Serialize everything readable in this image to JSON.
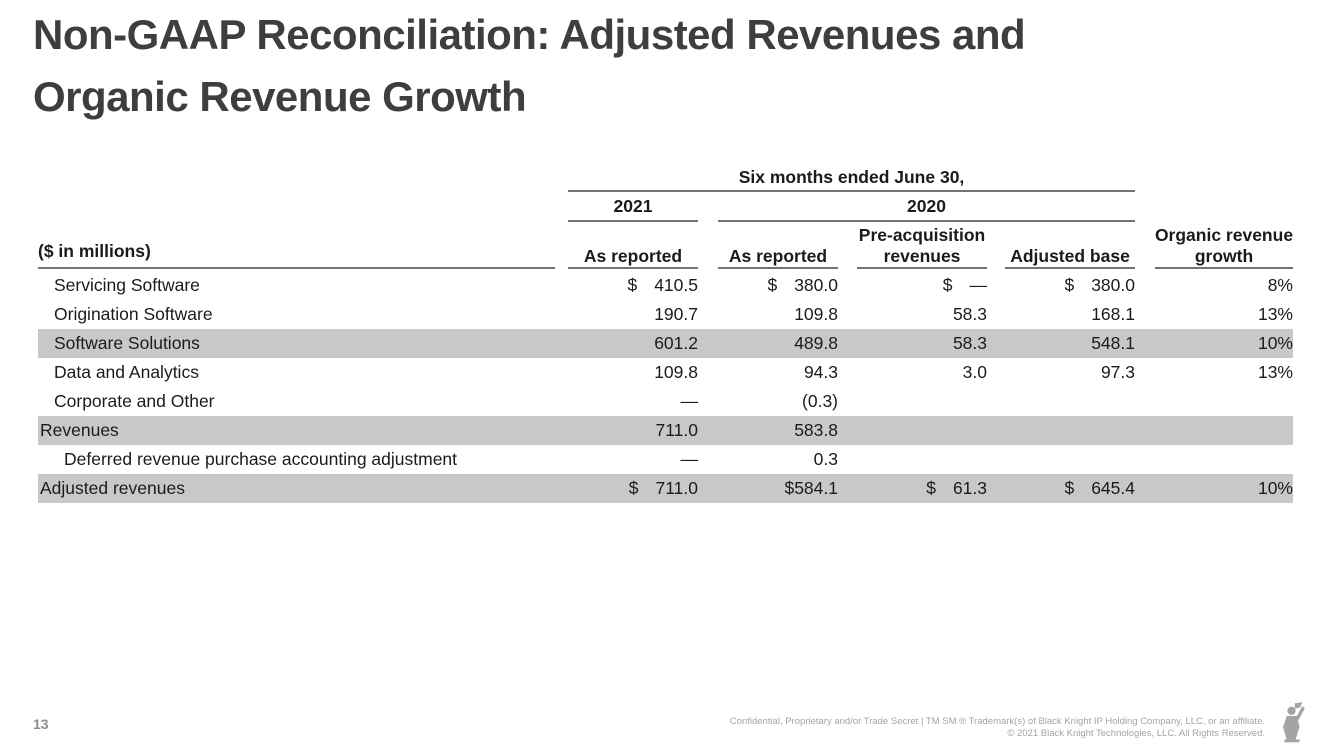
{
  "slide": {
    "title_line1": "Non-GAAP Reconciliation: Adjusted Revenues and",
    "title_line2": "Organic Revenue Growth",
    "page_number": "13"
  },
  "table": {
    "units_label": "($ in millions)",
    "period_label": "Six months ended June 30,",
    "year_2021": "2021",
    "year_2020": "2020",
    "columns": [
      "As reported",
      "As reported",
      "Pre-acquisition revenues",
      "Adjusted base",
      "Organic revenue growth"
    ],
    "rows": [
      {
        "label": "Servicing Software",
        "indent": 1,
        "shaded": false,
        "cells": [
          {
            "sym": "$",
            "val": "410.5"
          },
          {
            "sym": "$",
            "val": "380.0"
          },
          {
            "sym": "$",
            "val": "—"
          },
          {
            "sym": "$",
            "val": "380.0"
          },
          {
            "sym": "",
            "val": "8%"
          }
        ]
      },
      {
        "label": "Origination Software",
        "indent": 1,
        "shaded": false,
        "cells": [
          {
            "sym": "",
            "val": "190.7"
          },
          {
            "sym": "",
            "val": "109.8"
          },
          {
            "sym": "",
            "val": "58.3"
          },
          {
            "sym": "",
            "val": "168.1"
          },
          {
            "sym": "",
            "val": "13%"
          }
        ]
      },
      {
        "label": "Software Solutions",
        "indent": 1,
        "shaded": true,
        "cells": [
          {
            "sym": "",
            "val": "601.2"
          },
          {
            "sym": "",
            "val": "489.8"
          },
          {
            "sym": "",
            "val": "58.3"
          },
          {
            "sym": "",
            "val": "548.1"
          },
          {
            "sym": "",
            "val": "10%"
          }
        ]
      },
      {
        "label": "Data and Analytics",
        "indent": 1,
        "shaded": false,
        "cells": [
          {
            "sym": "",
            "val": "109.8"
          },
          {
            "sym": "",
            "val": "94.3"
          },
          {
            "sym": "",
            "val": "3.0"
          },
          {
            "sym": "",
            "val": "97.3"
          },
          {
            "sym": "",
            "val": "13%"
          }
        ]
      },
      {
        "label": "Corporate and Other",
        "indent": 1,
        "shaded": false,
        "cells": [
          {
            "sym": "",
            "val": "—"
          },
          {
            "sym": "",
            "val": "(0.3)"
          },
          {
            "sym": "",
            "val": ""
          },
          {
            "sym": "",
            "val": ""
          },
          {
            "sym": "",
            "val": ""
          }
        ]
      },
      {
        "label": "Revenues",
        "indent": 0,
        "shaded": true,
        "cells": [
          {
            "sym": "",
            "val": "711.0"
          },
          {
            "sym": "",
            "val": "583.8"
          },
          {
            "sym": "",
            "val": ""
          },
          {
            "sym": "",
            "val": ""
          },
          {
            "sym": "",
            "val": ""
          }
        ]
      },
      {
        "label": "Deferred revenue purchase accounting adjustment",
        "indent": 2,
        "shaded": false,
        "cells": [
          {
            "sym": "",
            "val": "—"
          },
          {
            "sym": "",
            "val": "0.3"
          },
          {
            "sym": "",
            "val": ""
          },
          {
            "sym": "",
            "val": ""
          },
          {
            "sym": "",
            "val": ""
          }
        ]
      },
      {
        "label": "Adjusted revenues",
        "indent": 0,
        "shaded": true,
        "cells": [
          {
            "sym": "$",
            "val": "711.0"
          },
          {
            "sym": "",
            "val": "$584.1"
          },
          {
            "sym": "$",
            "val": "61.3"
          },
          {
            "sym": "$",
            "val": "645.4"
          },
          {
            "sym": "",
            "val": "10%"
          }
        ]
      }
    ]
  },
  "footer": {
    "line1": "Confidential, Proprietary and/or Trade Secret | TM SM ® Trademark(s) of Black Knight IP Holding Company, LLC, or an affiliate.",
    "line2": "© 2021 Black Knight Technologies, LLC.  All Rights Reserved.",
    "logo": "black-knight-logo"
  },
  "colors": {
    "title": "#3e3e3e",
    "body_text": "#1b1b1b",
    "shaded_band": "#c8c8c8",
    "rule": "#737373",
    "footer_text": "#a4a4a4"
  }
}
